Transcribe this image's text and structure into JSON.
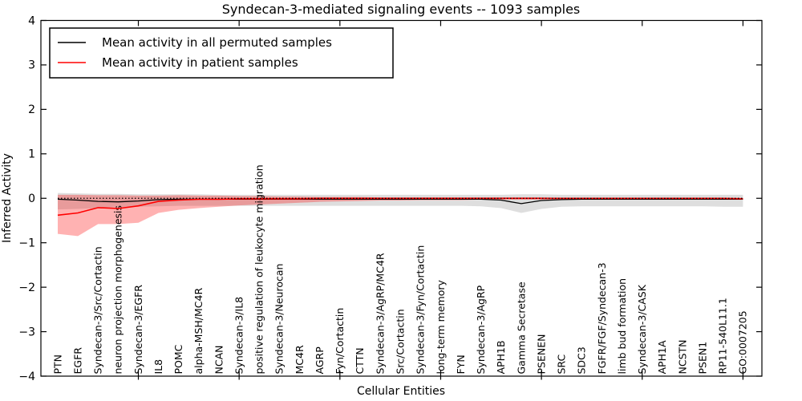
{
  "title": "Syndecan-3-mediated signaling events -- 1093 samples",
  "legend": {
    "permuted_label": "Mean activity in all permuted samples",
    "patient_label": "Mean activity in patient samples"
  },
  "colors": {
    "permuted_line": "#000000",
    "patient_line": "#ff0000",
    "permuted_band": "rgba(0,0,0,0.13)",
    "patient_band": "rgba(255,0,0,0.30)",
    "frame": "#000000",
    "background": "#ffffff"
  },
  "chart_data": {
    "type": "line",
    "title": "Syndecan-3-mediated signaling events -- 1093 samples",
    "xlabel": "Cellular Entities",
    "ylabel": "Inferred Activity",
    "ylim": [
      -4,
      4
    ],
    "yticks": [
      4,
      3,
      2,
      1,
      0,
      -1,
      -2,
      -3,
      -4
    ],
    "xtick_major_values": [
      5,
      10,
      15,
      20,
      25,
      30,
      35
    ],
    "grid": false,
    "legend_position": "upper left",
    "zero_line": {
      "y": 0,
      "style": "dotted",
      "color": "#000000"
    },
    "categories": [
      "PTN",
      "EGFR",
      "Syndecan-3/Src/Cortactin",
      "neuron projection morphogenesis",
      "Syndecan-3/EGFR",
      "IL8",
      "POMC",
      "alpha-MSH/MC4R",
      "NCAN",
      "Syndecan-3/IL8",
      "positive regulation of leukocyte migration",
      "Syndecan-3/Neurocan",
      "MC4R",
      "AGRP",
      "Fyn/Cortactin",
      "CTTN",
      "Syndecan-3/AgRP/MC4R",
      "Src/Cortactin",
      "Syndecan-3/Fyn/Cortactin",
      "long-term memory",
      "FYN",
      "Syndecan-3/AgRP",
      "APH1B",
      "Gamma Secretase",
      "PSENEN",
      "SRC",
      "SDC3",
      "FGFR/FGF/Syndecan-3",
      "limb bud formation",
      "Syndecan-3/CASK",
      "APH1A",
      "NCSTN",
      "PSEN1",
      "RP11-540L11.1",
      "GO:0007205"
    ],
    "series": [
      {
        "name": "Mean activity in all permuted samples",
        "color": "#000000",
        "values": [
          -0.02,
          -0.04,
          -0.07,
          -0.08,
          -0.06,
          -0.03,
          -0.02,
          -0.02,
          -0.02,
          -0.02,
          -0.02,
          -0.02,
          -0.02,
          -0.02,
          -0.02,
          -0.02,
          -0.02,
          -0.02,
          -0.02,
          -0.02,
          -0.02,
          -0.02,
          -0.04,
          -0.12,
          -0.05,
          -0.03,
          -0.02,
          -0.02,
          -0.02,
          -0.02,
          -0.02,
          -0.02,
          -0.02,
          -0.02,
          -0.02
        ]
      },
      {
        "name": "Mean activity in patient samples",
        "color": "#ff0000",
        "values": [
          -0.38,
          -0.33,
          -0.21,
          -0.23,
          -0.17,
          -0.07,
          -0.04,
          -0.02,
          -0.02,
          -0.01,
          -0.01,
          -0.01,
          -0.01,
          0,
          0,
          0,
          0,
          0,
          0,
          0,
          0,
          0,
          0,
          0,
          0,
          0,
          0,
          0,
          0,
          0,
          0,
          0,
          0,
          0,
          -0.01
        ]
      }
    ],
    "bands": [
      {
        "name": "permuted-activity-range",
        "color": "rgba(0,0,0,0.13)",
        "high": [
          0.12,
          0.11,
          0.1,
          0.1,
          0.09,
          0.09,
          0.09,
          0.09,
          0.08,
          0.08,
          0.08,
          0.08,
          0.08,
          0.08,
          0.08,
          0.08,
          0.08,
          0.08,
          0.08,
          0.08,
          0.08,
          0.08,
          0.08,
          0.09,
          0.09,
          0.08,
          0.08,
          0.08,
          0.08,
          0.08,
          0.08,
          0.08,
          0.08,
          0.08,
          0.08
        ],
        "low": [
          -0.25,
          -0.24,
          -0.22,
          -0.2,
          -0.19,
          -0.18,
          -0.17,
          -0.17,
          -0.17,
          -0.17,
          -0.17,
          -0.17,
          -0.17,
          -0.17,
          -0.17,
          -0.17,
          -0.17,
          -0.17,
          -0.17,
          -0.17,
          -0.17,
          -0.18,
          -0.22,
          -0.33,
          -0.24,
          -0.19,
          -0.18,
          -0.18,
          -0.18,
          -0.18,
          -0.18,
          -0.18,
          -0.18,
          -0.19,
          -0.19
        ]
      },
      {
        "name": "patient-activity-range",
        "color": "rgba(255,0,0,0.30)",
        "high": [
          0.08,
          0.08,
          0.07,
          0.07,
          0.06,
          0.06,
          0.07,
          0.06,
          0.06,
          0.05,
          0.05,
          0.04,
          0.04,
          0.03,
          0.03,
          0.03,
          0.02,
          0.02,
          0.02,
          0.02,
          0.02,
          0.02,
          0.02,
          0.02,
          0.02,
          0.01,
          0.01,
          0.01,
          0.01,
          0.01,
          0.01,
          0.01,
          0.01,
          0.01,
          0.01
        ],
        "low": [
          -0.8,
          -0.85,
          -0.58,
          -0.58,
          -0.55,
          -0.33,
          -0.26,
          -0.22,
          -0.19,
          -0.16,
          -0.14,
          -0.12,
          -0.1,
          -0.08,
          -0.07,
          -0.06,
          -0.05,
          -0.05,
          -0.04,
          -0.04,
          -0.04,
          -0.03,
          -0.03,
          -0.03,
          -0.03,
          -0.03,
          -0.03,
          -0.02,
          -0.02,
          -0.02,
          -0.02,
          -0.02,
          -0.02,
          -0.02,
          -0.02
        ]
      }
    ]
  }
}
